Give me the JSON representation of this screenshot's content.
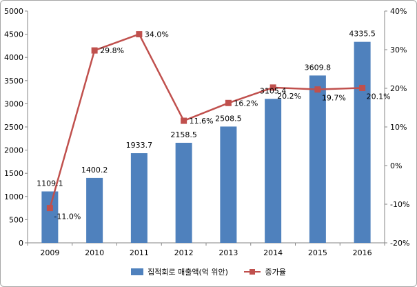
{
  "chart_data": {
    "type": "bar",
    "categories": [
      "2009",
      "2010",
      "2011",
      "2012",
      "2013",
      "2014",
      "2015",
      "2016"
    ],
    "series": [
      {
        "name": "집적회로 매출액(억 위안)",
        "type": "bar",
        "axis": "left",
        "color": "#4f81bd",
        "values": [
          1109.1,
          1400.2,
          1933.7,
          2158.5,
          2508.5,
          3105.4,
          3609.8,
          4335.5
        ],
        "labels": [
          "1109.1",
          "1400.2",
          "1933.7",
          "2158.5",
          "2508.5",
          "3105.4",
          "3609.8",
          "4335.5"
        ]
      },
      {
        "name": "증가율",
        "type": "line",
        "axis": "right",
        "color": "#c0504d",
        "values": [
          -11.0,
          29.8,
          34.0,
          11.6,
          16.2,
          20.2,
          19.7,
          20.1
        ],
        "labels": [
          "-11.0%",
          "29.8%",
          "34.0%",
          "11.6%",
          "16.2%",
          "20.2%",
          "19.7%",
          "20.1%"
        ]
      }
    ],
    "ylim": [
      0,
      5000
    ],
    "yticks": [
      "0",
      "500",
      "1000",
      "1500",
      "2000",
      "2500",
      "3000",
      "3500",
      "4000",
      "4500",
      "5000"
    ],
    "y2lim": [
      -20,
      40
    ],
    "y2ticks": [
      "-20%",
      "-10%",
      "0%",
      "10%",
      "20%",
      "30%",
      "40%"
    ],
    "grid": false,
    "legend_position": "bottom"
  },
  "legend": {
    "bar_label": "집적회로 매출액(억 위안)",
    "line_label": "증가율"
  }
}
